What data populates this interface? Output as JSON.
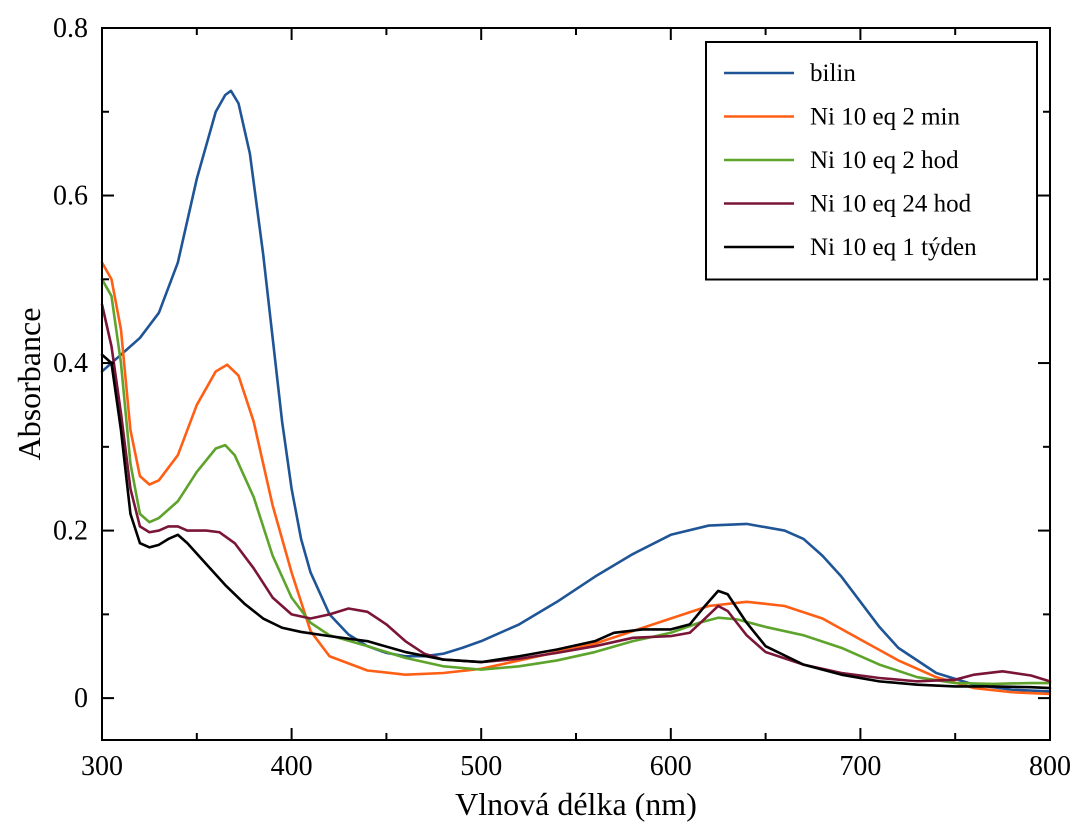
{
  "chart_data": {
    "type": "line",
    "xlabel": "Vlnová délka (nm)",
    "ylabel": "Absorbance",
    "xlim": [
      300,
      800
    ],
    "ylim": [
      -0.05,
      0.8
    ],
    "x_ticks": [
      300,
      400,
      500,
      600,
      700,
      800
    ],
    "x_tick_labels": [
      "300",
      "400",
      "500",
      "600",
      "700",
      "800"
    ],
    "y_ticks": [
      0,
      0.2,
      0.4,
      0.6,
      0.8
    ],
    "y_tick_labels": [
      "0",
      "0.2",
      "0.4",
      "0.6",
      "0.8"
    ],
    "grid": false,
    "legend_position": "top-right",
    "series": [
      {
        "name": "bilin",
        "color": "#1f5596",
        "points": [
          [
            300,
            0.39
          ],
          [
            310,
            0.41
          ],
          [
            320,
            0.43
          ],
          [
            330,
            0.46
          ],
          [
            340,
            0.52
          ],
          [
            350,
            0.62
          ],
          [
            360,
            0.7
          ],
          [
            365,
            0.72
          ],
          [
            368,
            0.725
          ],
          [
            372,
            0.71
          ],
          [
            378,
            0.65
          ],
          [
            385,
            0.53
          ],
          [
            390,
            0.43
          ],
          [
            395,
            0.33
          ],
          [
            400,
            0.25
          ],
          [
            405,
            0.19
          ],
          [
            410,
            0.15
          ],
          [
            420,
            0.1
          ],
          [
            430,
            0.076
          ],
          [
            440,
            0.062
          ],
          [
            450,
            0.054
          ],
          [
            460,
            0.05
          ],
          [
            470,
            0.05
          ],
          [
            480,
            0.053
          ],
          [
            490,
            0.06
          ],
          [
            500,
            0.068
          ],
          [
            520,
            0.088
          ],
          [
            540,
            0.115
          ],
          [
            560,
            0.145
          ],
          [
            580,
            0.172
          ],
          [
            600,
            0.195
          ],
          [
            620,
            0.206
          ],
          [
            640,
            0.208
          ],
          [
            660,
            0.2
          ],
          [
            670,
            0.19
          ],
          [
            680,
            0.17
          ],
          [
            690,
            0.145
          ],
          [
            700,
            0.115
          ],
          [
            710,
            0.085
          ],
          [
            720,
            0.06
          ],
          [
            740,
            0.03
          ],
          [
            760,
            0.016
          ],
          [
            780,
            0.01
          ],
          [
            800,
            0.008
          ]
        ]
      },
      {
        "name": "Ni 10 eq 2 min",
        "color": "#ff5f15",
        "points": [
          [
            300,
            0.52
          ],
          [
            305,
            0.5
          ],
          [
            310,
            0.44
          ],
          [
            315,
            0.32
          ],
          [
            320,
            0.265
          ],
          [
            325,
            0.255
          ],
          [
            330,
            0.26
          ],
          [
            340,
            0.29
          ],
          [
            350,
            0.35
          ],
          [
            360,
            0.39
          ],
          [
            366,
            0.398
          ],
          [
            372,
            0.385
          ],
          [
            380,
            0.33
          ],
          [
            390,
            0.23
          ],
          [
            400,
            0.15
          ],
          [
            410,
            0.08
          ],
          [
            420,
            0.05
          ],
          [
            440,
            0.033
          ],
          [
            460,
            0.028
          ],
          [
            480,
            0.03
          ],
          [
            500,
            0.035
          ],
          [
            520,
            0.045
          ],
          [
            540,
            0.055
          ],
          [
            560,
            0.065
          ],
          [
            580,
            0.08
          ],
          [
            600,
            0.095
          ],
          [
            620,
            0.11
          ],
          [
            640,
            0.115
          ],
          [
            660,
            0.11
          ],
          [
            680,
            0.095
          ],
          [
            700,
            0.07
          ],
          [
            720,
            0.045
          ],
          [
            740,
            0.025
          ],
          [
            760,
            0.012
          ],
          [
            780,
            0.007
          ],
          [
            800,
            0.005
          ]
        ]
      },
      {
        "name": "Ni 10 eq 2 hod",
        "color": "#5ea32c",
        "points": [
          [
            300,
            0.5
          ],
          [
            305,
            0.48
          ],
          [
            310,
            0.4
          ],
          [
            315,
            0.28
          ],
          [
            320,
            0.22
          ],
          [
            325,
            0.21
          ],
          [
            330,
            0.215
          ],
          [
            340,
            0.235
          ],
          [
            350,
            0.27
          ],
          [
            360,
            0.298
          ],
          [
            365,
            0.302
          ],
          [
            370,
            0.29
          ],
          [
            380,
            0.24
          ],
          [
            390,
            0.17
          ],
          [
            400,
            0.12
          ],
          [
            410,
            0.09
          ],
          [
            420,
            0.075
          ],
          [
            440,
            0.062
          ],
          [
            460,
            0.048
          ],
          [
            480,
            0.038
          ],
          [
            500,
            0.034
          ],
          [
            520,
            0.038
          ],
          [
            540,
            0.045
          ],
          [
            560,
            0.055
          ],
          [
            580,
            0.068
          ],
          [
            600,
            0.078
          ],
          [
            615,
            0.09
          ],
          [
            625,
            0.096
          ],
          [
            635,
            0.094
          ],
          [
            650,
            0.085
          ],
          [
            670,
            0.075
          ],
          [
            690,
            0.06
          ],
          [
            710,
            0.04
          ],
          [
            730,
            0.025
          ],
          [
            750,
            0.018
          ],
          [
            770,
            0.017
          ],
          [
            790,
            0.018
          ],
          [
            800,
            0.018
          ]
        ]
      },
      {
        "name": "Ni 10 eq 24 hod",
        "color": "#7a1537",
        "points": [
          [
            300,
            0.47
          ],
          [
            305,
            0.42
          ],
          [
            310,
            0.34
          ],
          [
            315,
            0.25
          ],
          [
            320,
            0.205
          ],
          [
            325,
            0.198
          ],
          [
            330,
            0.2
          ],
          [
            335,
            0.205
          ],
          [
            340,
            0.205
          ],
          [
            345,
            0.2
          ],
          [
            355,
            0.2
          ],
          [
            362,
            0.198
          ],
          [
            370,
            0.185
          ],
          [
            380,
            0.155
          ],
          [
            390,
            0.12
          ],
          [
            400,
            0.1
          ],
          [
            410,
            0.095
          ],
          [
            420,
            0.1
          ],
          [
            430,
            0.107
          ],
          [
            440,
            0.103
          ],
          [
            450,
            0.088
          ],
          [
            460,
            0.068
          ],
          [
            470,
            0.053
          ],
          [
            480,
            0.046
          ],
          [
            500,
            0.043
          ],
          [
            520,
            0.047
          ],
          [
            540,
            0.054
          ],
          [
            560,
            0.062
          ],
          [
            580,
            0.072
          ],
          [
            600,
            0.074
          ],
          [
            610,
            0.078
          ],
          [
            618,
            0.095
          ],
          [
            625,
            0.11
          ],
          [
            630,
            0.104
          ],
          [
            640,
            0.075
          ],
          [
            650,
            0.055
          ],
          [
            670,
            0.04
          ],
          [
            690,
            0.03
          ],
          [
            710,
            0.024
          ],
          [
            730,
            0.02
          ],
          [
            750,
            0.022
          ],
          [
            760,
            0.028
          ],
          [
            775,
            0.032
          ],
          [
            790,
            0.027
          ],
          [
            800,
            0.02
          ]
        ]
      },
      {
        "name": "Ni 10 eq 1 týden",
        "color": "#000000",
        "points": [
          [
            300,
            0.41
          ],
          [
            305,
            0.4
          ],
          [
            310,
            0.32
          ],
          [
            315,
            0.22
          ],
          [
            320,
            0.185
          ],
          [
            325,
            0.18
          ],
          [
            330,
            0.183
          ],
          [
            335,
            0.19
          ],
          [
            340,
            0.195
          ],
          [
            345,
            0.185
          ],
          [
            355,
            0.16
          ],
          [
            365,
            0.135
          ],
          [
            375,
            0.113
          ],
          [
            385,
            0.095
          ],
          [
            395,
            0.084
          ],
          [
            405,
            0.079
          ],
          [
            420,
            0.074
          ],
          [
            440,
            0.068
          ],
          [
            460,
            0.055
          ],
          [
            480,
            0.046
          ],
          [
            500,
            0.043
          ],
          [
            520,
            0.05
          ],
          [
            540,
            0.058
          ],
          [
            560,
            0.068
          ],
          [
            570,
            0.078
          ],
          [
            585,
            0.082
          ],
          [
            600,
            0.082
          ],
          [
            610,
            0.088
          ],
          [
            618,
            0.11
          ],
          [
            625,
            0.128
          ],
          [
            630,
            0.124
          ],
          [
            640,
            0.09
          ],
          [
            650,
            0.062
          ],
          [
            670,
            0.04
          ],
          [
            690,
            0.028
          ],
          [
            710,
            0.02
          ],
          [
            730,
            0.016
          ],
          [
            750,
            0.014
          ],
          [
            770,
            0.014
          ],
          [
            790,
            0.013
          ],
          [
            800,
            0.012
          ]
        ]
      }
    ]
  }
}
